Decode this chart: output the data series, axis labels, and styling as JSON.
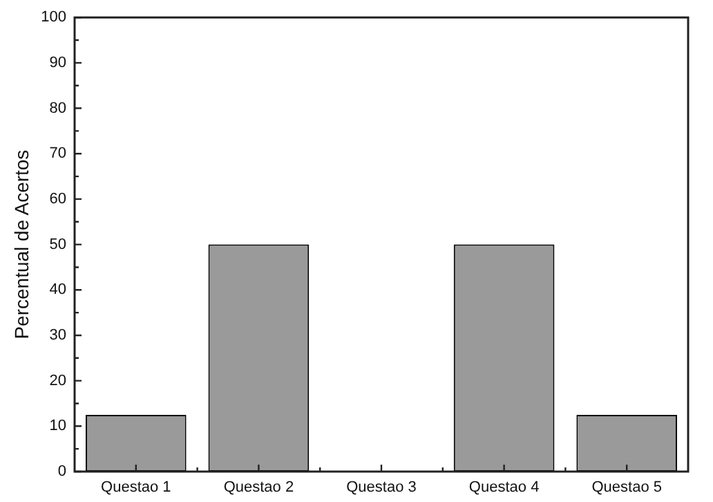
{
  "chart_data": {
    "type": "bar",
    "ylabel": "Percentual de Acertos",
    "categories": [
      "Questao 1",
      "Questao 2",
      "Questao 3",
      "Questao 4",
      "Questao 5"
    ],
    "values": [
      12.5,
      50,
      0,
      50,
      12.5
    ],
    "color": "#9a9a9a",
    "ylim": [
      0,
      100
    ],
    "yticks": [
      0,
      {
        "value": 5,
        "label": null
      },
      10,
      {
        "value": 15,
        "label": null
      },
      20,
      {
        "value": 25,
        "label": null
      },
      30,
      {
        "value": 35,
        "label": null
      },
      40,
      {
        "value": 45,
        "label": null
      },
      50,
      {
        "value": 55,
        "label": null
      },
      60,
      {
        "value": 65,
        "label": null
      },
      70,
      {
        "value": 75,
        "label": null
      },
      80,
      {
        "value": 85,
        "label": null
      },
      90,
      {
        "value": 95,
        "label": null
      },
      100
    ],
    "grid": false,
    "legend": false
  }
}
